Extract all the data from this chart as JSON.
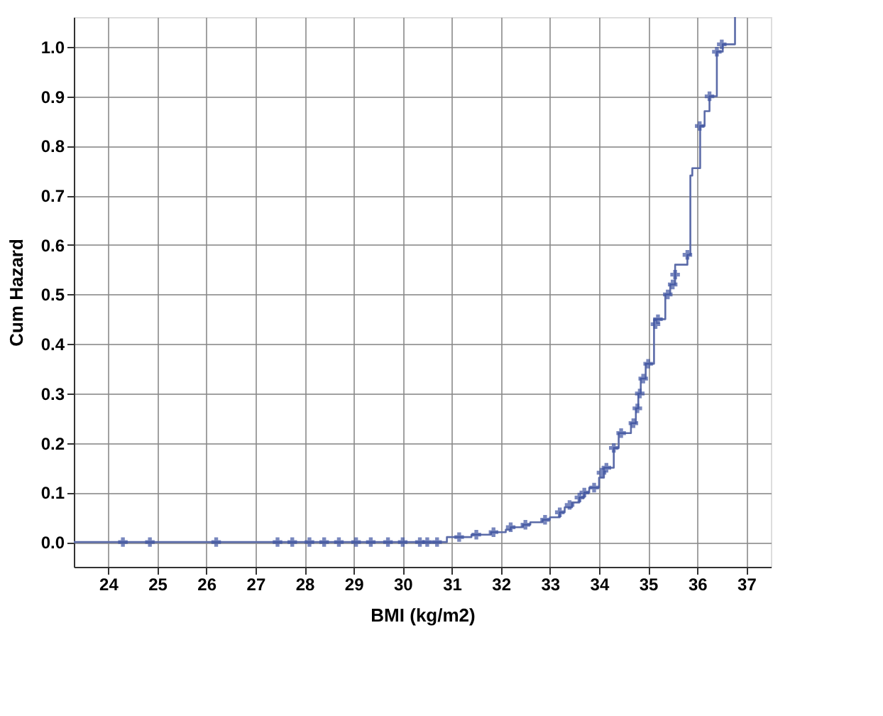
{
  "chart_data": {
    "type": "step",
    "xlabel": "BMI (kg/m2)",
    "ylabel": "Cum Hazard",
    "xlim": [
      23.3,
      37.5
    ],
    "ylim": [
      -0.05,
      1.06
    ],
    "xticks": [
      24,
      25,
      26,
      27,
      28,
      29,
      30,
      31,
      32,
      33,
      34,
      35,
      36,
      37
    ],
    "yticks": [
      {
        "value": 0,
        "label": "0.0"
      },
      0.1,
      0.2,
      0.3,
      0.4,
      0.5,
      0.6,
      0.7,
      0.8,
      0.9,
      {
        "value": 1,
        "label": "1.0"
      }
    ],
    "grid": true,
    "series": [
      {
        "color": "#5b6ba8",
        "marker": "none",
        "line_style": "solid",
        "x": [
          23.3,
          30.9,
          31.4,
          31.8,
          32.1,
          32.2,
          32.45,
          32.6,
          32.85,
          33.0,
          33.2,
          33.3,
          33.45,
          33.6,
          33.7,
          33.8,
          34.0,
          34.1,
          34.3,
          34.4,
          34.65,
          34.75,
          34.8,
          34.85,
          34.95,
          35.12,
          35.35,
          35.45,
          35.55,
          35.8,
          35.86,
          35.9,
          36.06,
          36.15,
          36.25,
          36.4,
          36.52,
          36.77
        ],
        "values": [
          0,
          0.01,
          0.015,
          0.02,
          0.025,
          0.03,
          0.035,
          0.04,
          0.045,
          0.05,
          0.06,
          0.07,
          0.08,
          0.09,
          0.1,
          0.11,
          0.13,
          0.15,
          0.19,
          0.22,
          0.24,
          0.27,
          0.3,
          0.33,
          0.36,
          0.45,
          0.5,
          0.52,
          0.56,
          0.58,
          0.74,
          0.755,
          0.84,
          0.87,
          0.9,
          0.99,
          1.005,
          1.06
        ]
      },
      {
        "type": "scatter",
        "color": "#3e54a3",
        "marker": "cross",
        "x": [
          24.3,
          24.85,
          26.2,
          27.45,
          27.75,
          28.1,
          28.4,
          28.7,
          29.05,
          29.35,
          29.7,
          30.0,
          30.35,
          30.5,
          30.7,
          31.15,
          31.5,
          31.85,
          32.2,
          32.5,
          32.9,
          33.2,
          33.4,
          33.6,
          33.7,
          33.9,
          34.05,
          34.15,
          34.3,
          34.45,
          34.7,
          34.78,
          34.83,
          34.9,
          35.0,
          35.15,
          35.2,
          35.4,
          35.5,
          35.55,
          35.8,
          36.05,
          36.25,
          36.4,
          36.5
        ],
        "values": [
          0,
          0,
          0,
          0,
          0,
          0,
          0,
          0,
          0,
          0,
          0,
          0,
          0,
          0,
          0,
          0.01,
          0.015,
          0.02,
          0.03,
          0.035,
          0.045,
          0.06,
          0.075,
          0.09,
          0.1,
          0.11,
          0.14,
          0.15,
          0.19,
          0.22,
          0.24,
          0.27,
          0.3,
          0.33,
          0.36,
          0.44,
          0.45,
          0.5,
          0.52,
          0.54,
          0.58,
          0.84,
          0.9,
          0.99,
          1.005
        ]
      }
    ]
  }
}
